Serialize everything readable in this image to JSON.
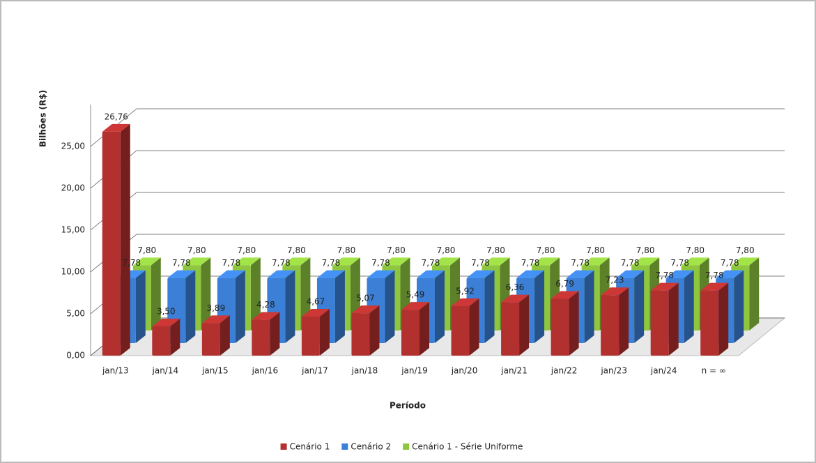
{
  "chart_data": {
    "type": "bar3d",
    "y_label": "Bilhões (R$)",
    "x_label": "Período",
    "categories": [
      "jan/13",
      "jan/14",
      "jan/15",
      "jan/16",
      "jan/17",
      "jan/18",
      "jan/19",
      "jan/20",
      "jan/21",
      "jan/22",
      "jan/23",
      "jan/24",
      "n = ∞"
    ],
    "series": [
      {
        "name": "Cenário 1",
        "color": "#b2302e",
        "values": [
          26.76,
          3.5,
          3.89,
          4.28,
          4.67,
          5.07,
          5.49,
          5.92,
          6.36,
          6.79,
          7.23,
          7.78,
          7.78
        ],
        "value_labels": [
          "26,76",
          "3,50",
          "3,89",
          "4,28",
          "4,67",
          "5,07",
          "5,49",
          "5,92",
          "6,36",
          "6,79",
          "7,23",
          "7,78",
          "7,78"
        ]
      },
      {
        "name": "Cenário 2",
        "color": "#3b7fd6",
        "values": [
          7.78,
          7.78,
          7.78,
          7.78,
          7.78,
          7.78,
          7.78,
          7.78,
          7.78,
          7.78,
          7.78,
          7.78,
          7.78
        ],
        "value_labels": [
          "7,78",
          "7,78",
          "7,78",
          "7,78",
          "7,78",
          "7,78",
          "7,78",
          "7,78",
          "7,78",
          "7,78",
          "7,78",
          "7,78",
          "7,78"
        ]
      },
      {
        "name": "Cenário 1 - Série Uniforme",
        "color": "#8ec63f",
        "values": [
          7.8,
          7.8,
          7.8,
          7.8,
          7.8,
          7.8,
          7.8,
          7.8,
          7.8,
          7.8,
          7.8,
          7.8,
          7.8
        ],
        "value_labels": [
          "7,80",
          "7,80",
          "7,80",
          "7,80",
          "7,80",
          "7,80",
          "7,80",
          "7,80",
          "7,80",
          "7,80",
          "7,80",
          "7,80",
          "7,80"
        ]
      }
    ],
    "ylim": [
      0,
      30
    ],
    "yticks": [
      {
        "value": 0,
        "label": "0,00"
      },
      {
        "value": 5,
        "label": "5,00"
      },
      {
        "value": 10,
        "label": "10,00"
      },
      {
        "value": 15,
        "label": "15,00"
      },
      {
        "value": 20,
        "label": "20,00"
      },
      {
        "value": 25,
        "label": "25,00"
      }
    ],
    "grid": true,
    "legend": "bottom"
  }
}
